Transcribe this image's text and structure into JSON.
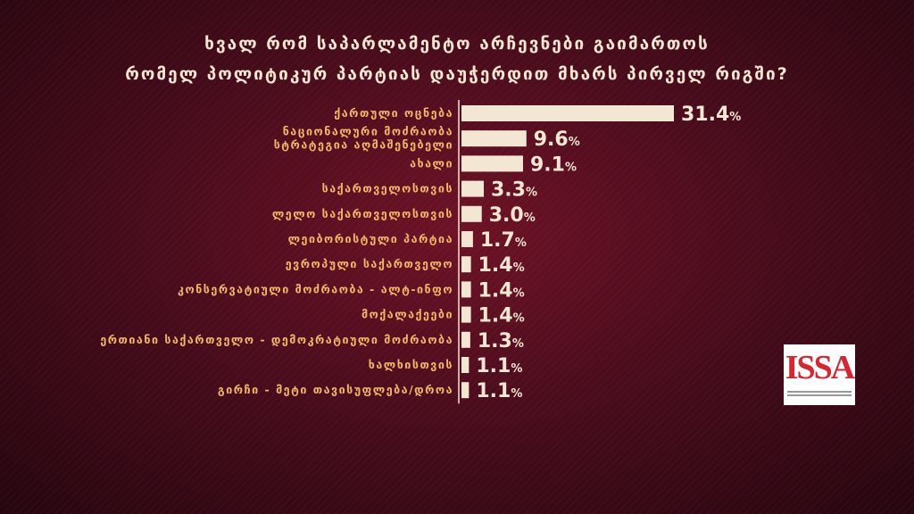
{
  "title": {
    "line1": "ხვალ რომ საპარლამენტო არჩევნები გაიმართოს",
    "line2": "რომელ პოლიტიკურ პარტიას დაუჭერდით მხარს პირველ რიგში?"
  },
  "logo": {
    "text": "ISSA"
  },
  "colors": {
    "bar": "#f3e6d2",
    "category_text": "#f2b868",
    "background": "#4a0c1c"
  },
  "chart_data": {
    "type": "bar",
    "orientation": "horizontal",
    "categories": [
      [
        "ქართული ოცნება"
      ],
      [
        "ნაციონალური მოძრაობა",
        "სტრატეგია აღმაშენებელი"
      ],
      [
        "ახალი"
      ],
      [
        "საქართველოსთვის"
      ],
      [
        "ლელო საქართველოსთვის"
      ],
      [
        "ლეიბორისტული პარტია"
      ],
      [
        "ევროპული საქართველო"
      ],
      [
        "კონსერვატიული მოძრაობა - ალტ-ინფო"
      ],
      [
        "მოქალაქეები"
      ],
      [
        "ერთიანი საქართველო - დემოკრატიული მოძრაობა"
      ],
      [
        "ხალხისთვის"
      ],
      [
        "გირჩი - მეტი თავისუფლება/დროა"
      ]
    ],
    "values": [
      31.4,
      9.6,
      9.1,
      3.3,
      3.0,
      1.7,
      1.4,
      1.4,
      1.4,
      1.3,
      1.1,
      1.1
    ],
    "value_labels": [
      "31.4",
      "9.6",
      "9.1",
      "3.3",
      "3.0",
      "1.7",
      "1.4",
      "1.4",
      "1.4",
      "1.3",
      "1.1",
      "1.1"
    ],
    "unit": "%",
    "xlim": [
      0,
      31.4
    ],
    "grid": false,
    "legend": "none"
  }
}
